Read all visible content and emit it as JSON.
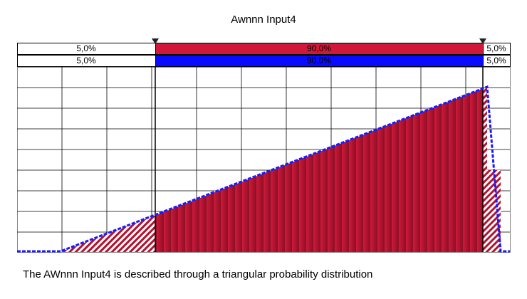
{
  "title": "Awnnn Input4",
  "bands": {
    "top": [
      "5,0%",
      "90,0%",
      "5,0%"
    ],
    "bottom": [
      "5,0%",
      "90,0%",
      "5,0%"
    ]
  },
  "caption": "The AWnnn Input4 is described through a triangular probability distribution"
}
